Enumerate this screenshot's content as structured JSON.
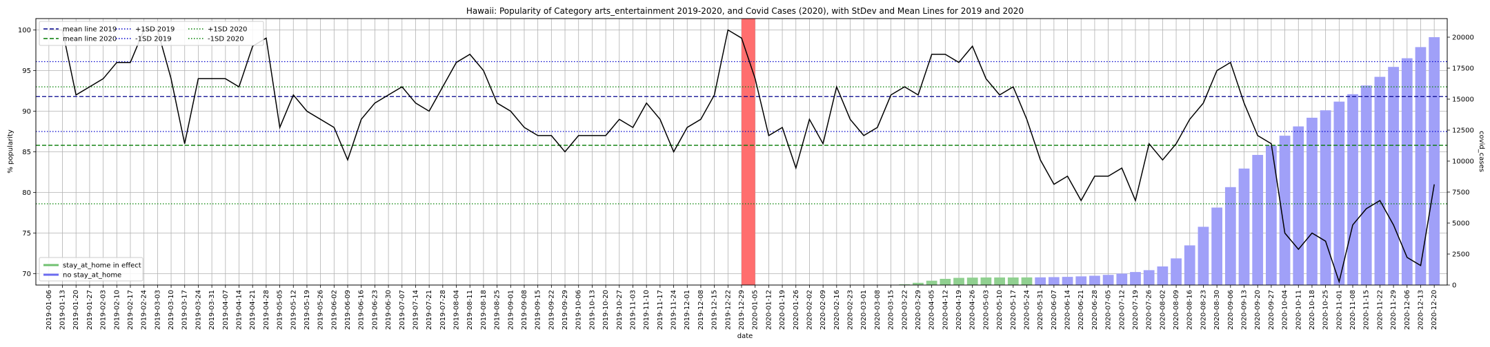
{
  "chart_data": {
    "type": "line",
    "title": "Hawaii: Popularity of Category arts_entertainment 2019-2020, and Covid Cases (2020), with StDev and Mean Lines for 2019 and 2020",
    "xlabel": "date",
    "ylabel": "% popularity",
    "y2label": "covid_cases",
    "ylim": [
      68.6,
      101.4
    ],
    "y2lim": [
      0,
      21500
    ],
    "yticks": [
      70,
      75,
      80,
      85,
      90,
      95,
      100
    ],
    "y2ticks": [
      0,
      2500,
      5000,
      7500,
      10000,
      12500,
      15000,
      17500,
      20000
    ],
    "grid": true,
    "x": [
      "2019-01-06",
      "2019-01-13",
      "2019-01-20",
      "2019-01-27",
      "2019-02-03",
      "2019-02-10",
      "2019-02-17",
      "2019-02-24",
      "2019-03-03",
      "2019-03-10",
      "2019-03-17",
      "2019-03-24",
      "2019-03-31",
      "2019-04-07",
      "2019-04-14",
      "2019-04-21",
      "2019-04-28",
      "2019-05-05",
      "2019-05-12",
      "2019-05-19",
      "2019-05-26",
      "2019-06-02",
      "2019-06-09",
      "2019-06-16",
      "2019-06-23",
      "2019-06-30",
      "2019-07-07",
      "2019-07-14",
      "2019-07-21",
      "2019-07-28",
      "2019-08-04",
      "2019-08-11",
      "2019-08-18",
      "2019-08-25",
      "2019-09-01",
      "2019-09-08",
      "2019-09-15",
      "2019-09-22",
      "2019-09-29",
      "2019-10-06",
      "2019-10-13",
      "2019-10-20",
      "2019-10-27",
      "2019-11-03",
      "2019-11-10",
      "2019-11-17",
      "2019-11-24",
      "2019-12-01",
      "2019-12-08",
      "2019-12-15",
      "2019-12-22",
      "2019-12-29",
      "2020-01-05",
      "2020-01-12",
      "2020-01-19",
      "2020-01-26",
      "2020-02-02",
      "2020-02-09",
      "2020-02-16",
      "2020-02-23",
      "2020-03-01",
      "2020-03-08",
      "2020-03-15",
      "2020-03-22",
      "2020-03-29",
      "2020-04-05",
      "2020-04-12",
      "2020-04-19",
      "2020-04-26",
      "2020-05-03",
      "2020-05-10",
      "2020-05-17",
      "2020-05-24",
      "2020-05-31",
      "2020-06-07",
      "2020-06-14",
      "2020-06-21",
      "2020-06-28",
      "2020-07-05",
      "2020-07-12",
      "2020-07-19",
      "2020-07-26",
      "2020-08-02",
      "2020-08-09",
      "2020-08-16",
      "2020-08-23",
      "2020-08-30",
      "2020-09-06",
      "2020-09-13",
      "2020-09-20",
      "2020-09-27",
      "2020-10-04",
      "2020-10-11",
      "2020-10-18",
      "2020-10-25",
      "2020-11-01",
      "2020-11-08",
      "2020-11-15",
      "2020-11-22",
      "2020-11-29",
      "2020-12-06",
      "2020-12-13",
      "2020-12-20"
    ],
    "series": [
      {
        "axis": "left",
        "color": "#000000",
        "values": [
          100,
          100,
          92,
          93,
          94,
          96,
          96,
          100,
          100,
          94,
          86,
          94,
          94,
          94,
          93,
          98,
          99,
          88,
          92,
          90,
          89,
          88,
          84,
          89,
          91,
          92,
          93,
          91,
          90,
          93,
          96,
          97,
          95,
          91,
          90,
          88,
          87,
          87,
          85,
          87,
          87,
          87,
          89,
          88,
          91,
          89,
          85,
          88,
          89,
          92,
          100,
          99,
          94,
          87,
          88,
          83,
          89,
          86,
          93,
          89,
          87,
          88,
          92,
          93,
          92,
          97,
          97,
          96,
          98,
          94,
          92,
          93,
          89,
          84,
          81,
          82,
          79,
          82,
          82,
          83,
          79,
          86,
          84,
          86,
          89,
          91,
          95,
          96,
          91,
          87,
          86,
          75,
          73,
          75,
          74,
          69,
          76,
          78,
          79,
          76,
          72,
          71,
          81
        ]
      },
      {
        "axis": "right",
        "kind": "bar",
        "values": [
          0,
          0,
          0,
          0,
          0,
          0,
          0,
          0,
          0,
          0,
          0,
          0,
          0,
          0,
          0,
          0,
          0,
          0,
          0,
          0,
          0,
          0,
          0,
          0,
          0,
          0,
          0,
          0,
          0,
          0,
          0,
          0,
          0,
          0,
          0,
          0,
          0,
          0,
          0,
          0,
          0,
          0,
          0,
          0,
          0,
          0,
          0,
          0,
          0,
          0,
          0,
          0,
          0,
          0,
          0,
          0,
          0,
          0,
          0,
          0,
          0,
          0,
          0,
          60,
          180,
          350,
          500,
          580,
          600,
          610,
          610,
          610,
          615,
          620,
          640,
          660,
          700,
          750,
          820,
          920,
          1050,
          1200,
          1500,
          2150,
          3200,
          4700,
          6250,
          7900,
          9400,
          10500,
          11250,
          12050,
          12800,
          13500,
          14100,
          14800,
          15400,
          16100,
          16800,
          17600,
          18300,
          19200,
          20000
        ]
      }
    ],
    "bar_colors": {
      "stay_at_home": "#90d090",
      "no_stay_at_home": "#a0a0f8"
    },
    "stay_at_home_range": [
      "2020-03-22",
      "2020-05-24"
    ],
    "highlight_span": [
      "2019-12-29",
      "2020-01-05"
    ],
    "highlight_color": "#ff6e6e",
    "reference_lines": [
      {
        "label": "mean line 2019",
        "y": 91.8,
        "color": "#00008b",
        "style": "dashed"
      },
      {
        "label": "mean line 2020",
        "y": 85.8,
        "color": "#007a00",
        "style": "dashed"
      },
      {
        "label": "+1SD 2019",
        "y": 96.1,
        "color": "#0000cd",
        "style": "dotted"
      },
      {
        "label": "-1SD 2019",
        "y": 87.5,
        "color": "#0000cd",
        "style": "dotted"
      },
      {
        "label": "+1SD 2020",
        "y": 93.0,
        "color": "#008000",
        "style": "dotted"
      },
      {
        "label": "-1SD 2020",
        "y": 78.6,
        "color": "#008000",
        "style": "dotted"
      }
    ],
    "legend_top": [
      "mean line 2019",
      "mean line 2020",
      "+1SD 2019",
      "-1SD 2019",
      "+1SD 2020",
      "-1SD 2020"
    ],
    "legend_top_placement": "top-left",
    "legend_bottom": [
      {
        "label": "stay_at_home in effect",
        "color": "#70c070"
      },
      {
        "label": "no stay_at_home",
        "color": "#6b6bf0"
      }
    ],
    "legend_bottom_placement": "bottom-left"
  }
}
